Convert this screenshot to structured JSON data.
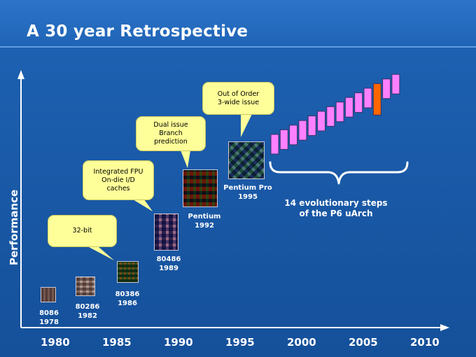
{
  "slide": {
    "title": "A 30 year Retrospective"
  },
  "axis": {
    "ylabel": "Performance",
    "years": [
      "1980",
      "1985",
      "1990",
      "1995",
      "2000",
      "2005",
      "2010"
    ]
  },
  "chips": [
    {
      "name": "8086",
      "year": "1978"
    },
    {
      "name": "80286",
      "year": "1982"
    },
    {
      "name": "80386",
      "year": "1986"
    },
    {
      "name": "80486",
      "year": "1989"
    },
    {
      "name": "Pentium",
      "year": "1992"
    },
    {
      "name": "Pentium Pro",
      "year": "1995"
    }
  ],
  "callouts": [
    {
      "lines": [
        "32-bit"
      ]
    },
    {
      "lines": [
        "Integrated FPU",
        "On-die I/D",
        "caches"
      ]
    },
    {
      "lines": [
        "Dual issue",
        "Branch",
        "prediction"
      ]
    },
    {
      "lines": [
        "Out of Order",
        "3-wide issue"
      ]
    }
  ],
  "evolution": {
    "caption_line1": "14 evolutionary steps",
    "caption_line2": "of the P6 uArch",
    "step_color": "#ff80ff",
    "highlight_color": "#ff6600",
    "steps_count": 14,
    "highlighted_step": 11
  },
  "colors": {
    "background": "#1a5aa8",
    "callout": "#ffff99",
    "text": "#ffffff"
  }
}
